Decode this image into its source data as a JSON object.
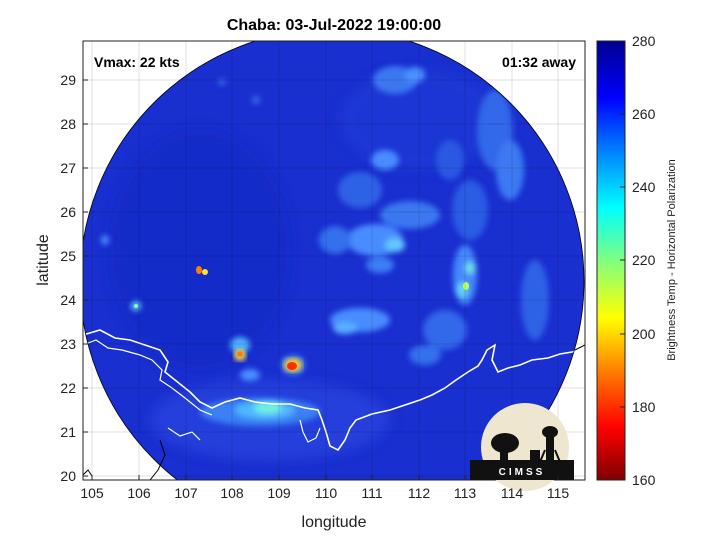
{
  "title": "Chaba: 03-Jul-2022 19:00:00",
  "vmax_label": "Vmax: 22 kts",
  "time_away_label": "01:32 away",
  "x_axis": {
    "label": "longitude",
    "ticks": [
      "105",
      "106",
      "107",
      "108",
      "109",
      "110",
      "111",
      "112",
      "113",
      "114",
      "115"
    ]
  },
  "y_axis": {
    "label": "latitude",
    "ticks": [
      "20",
      "21",
      "22",
      "23",
      "24",
      "25",
      "26",
      "27",
      "28",
      "29"
    ]
  },
  "colorbar": {
    "label": "Brightness Temp - Horizontal Polarization",
    "ticks": [
      "280",
      "260",
      "240",
      "220",
      "200",
      "180",
      "160"
    ]
  },
  "logo_text": "CIMSS",
  "colors": {
    "background_field": "#1a2fd0",
    "outside_disk": "#ffffff",
    "coastline": "#ffffff",
    "colormap": [
      "#7f0000",
      "#ff0000",
      "#ff8000",
      "#ffff00",
      "#80ff80",
      "#00ffff",
      "#0080ff",
      "#0000ff",
      "#00008f"
    ]
  }
}
